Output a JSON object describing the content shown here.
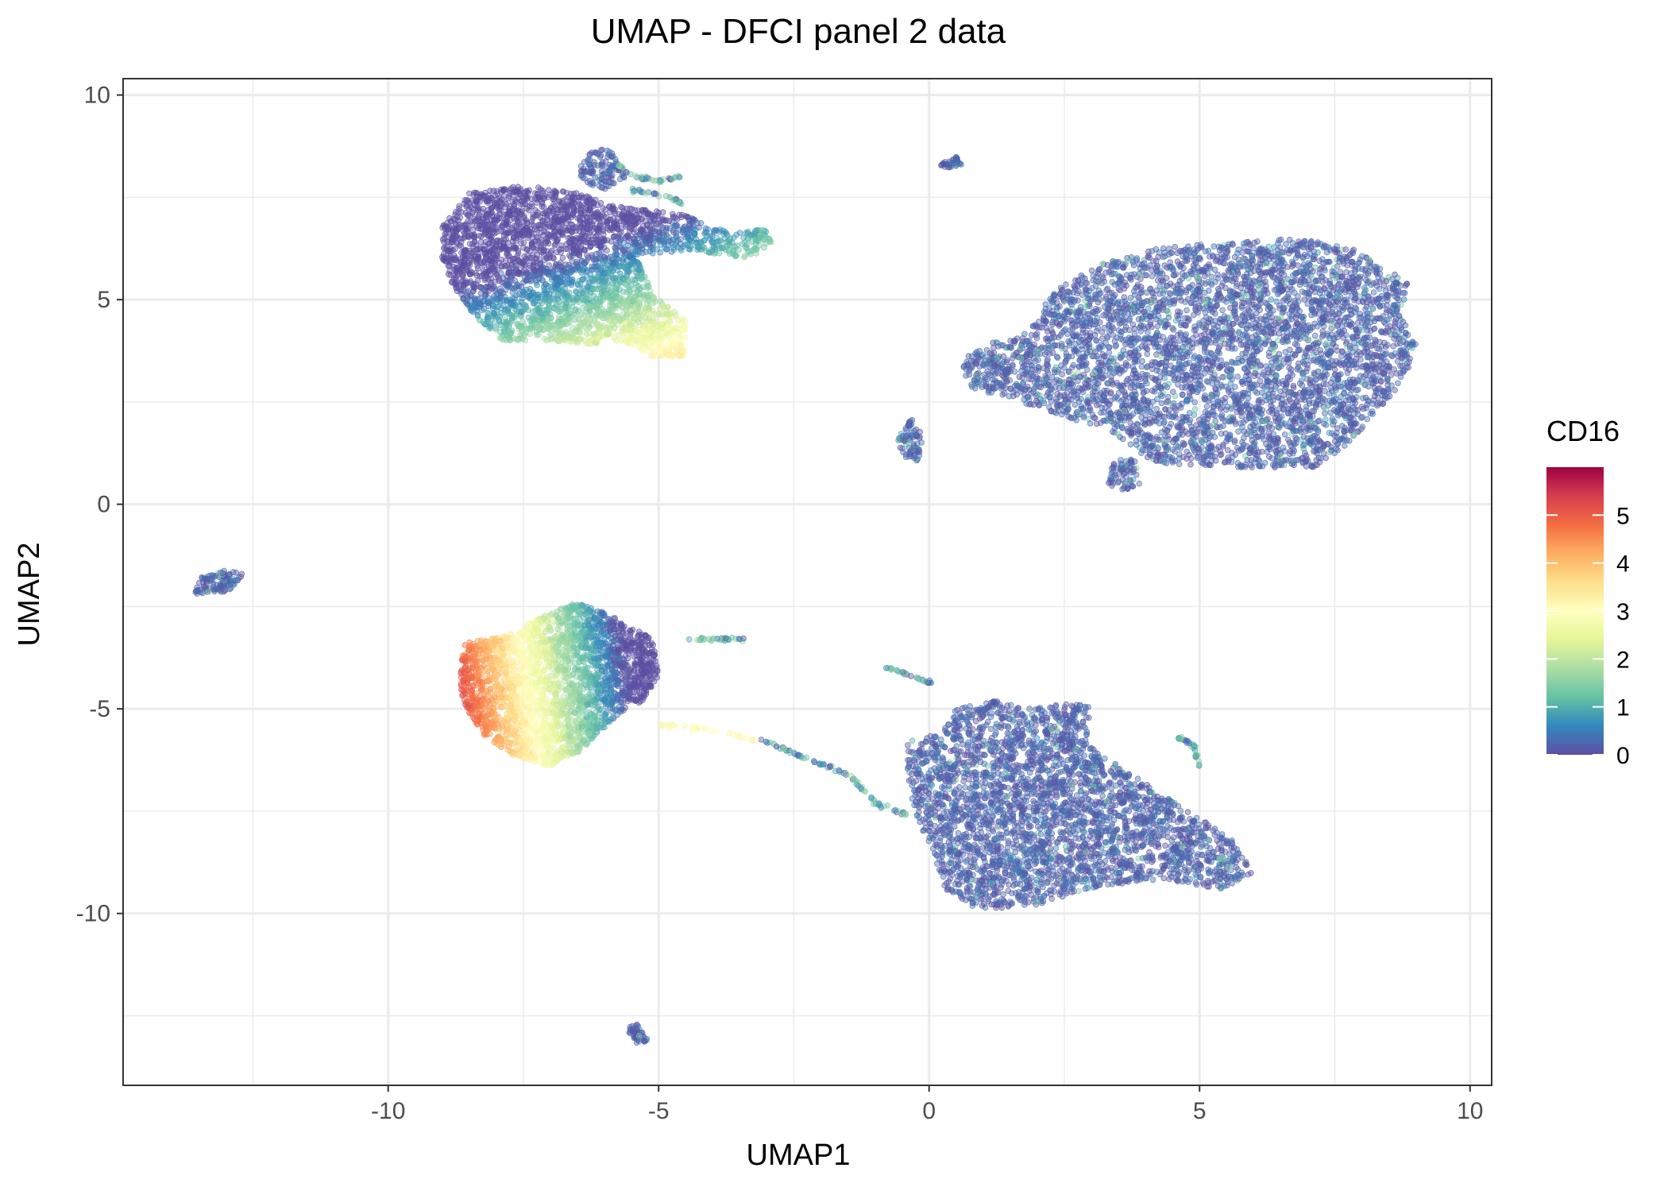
{
  "chart_data": {
    "type": "scatter",
    "title": "UMAP - DFCI panel 2 data",
    "xlabel": "UMAP1",
    "ylabel": "UMAP2",
    "xlim": [
      -14.9,
      10.4
    ],
    "ylim": [
      -14.2,
      10.4
    ],
    "x_ticks": [
      -10,
      -5,
      0,
      5,
      10
    ],
    "x_tick_labels": [
      "-10",
      "-5",
      "0",
      "5",
      "10"
    ],
    "y_ticks": [
      10,
      5,
      0,
      -5,
      -10
    ],
    "y_tick_labels": [
      "10",
      "5",
      "0",
      "-5",
      "-10"
    ],
    "grid": true,
    "legend": {
      "title": "CD16",
      "placement": "right",
      "range": [
        0,
        6
      ],
      "ticks": [
        0,
        1,
        2,
        3,
        4,
        5
      ],
      "tick_labels": [
        "0",
        "1",
        "2",
        "3",
        "4",
        "5"
      ],
      "palette": [
        "#5e4fa2",
        "#3288bd",
        "#66c2a5",
        "#abdda4",
        "#e6f598",
        "#ffffbf",
        "#fee08b",
        "#fdae61",
        "#f46d43",
        "#d53e4f",
        "#9e0142"
      ]
    },
    "clusters": [
      {
        "name": "top-left",
        "polygon": [
          [
            -9.0,
            6.8
          ],
          [
            -8.5,
            7.6
          ],
          [
            -7.5,
            7.8
          ],
          [
            -6.5,
            7.6
          ],
          [
            -5.8,
            7.3
          ],
          [
            -4.6,
            7.1
          ],
          [
            -3.6,
            6.6
          ],
          [
            -3.0,
            6.8
          ],
          [
            -2.9,
            6.4
          ],
          [
            -3.3,
            6.0
          ],
          [
            -4.4,
            6.2
          ],
          [
            -5.4,
            6.1
          ],
          [
            -5.1,
            5.1
          ],
          [
            -4.5,
            4.5
          ],
          [
            -4.5,
            3.6
          ],
          [
            -5.1,
            3.6
          ],
          [
            -5.7,
            4.0
          ],
          [
            -6.2,
            3.9
          ],
          [
            -7.0,
            4.0
          ],
          [
            -7.9,
            4.0
          ],
          [
            -8.4,
            4.6
          ],
          [
            -8.8,
            5.3
          ],
          [
            -9.0,
            6.0
          ]
        ],
        "n": 3200,
        "value_model": "gradient",
        "value_dir": [
          0.45,
          -1.0
        ],
        "value_range": [
          -0.7,
          5.0
        ],
        "value_shift": -0.25
      },
      {
        "name": "top-right",
        "polygon": [
          [
            -3.2,
            3.3
          ],
          [
            -3.0,
            3.8
          ],
          [
            -2.0,
            4.2
          ],
          [
            -1.5,
            5.2
          ],
          [
            -0.6,
            5.9
          ],
          [
            0.6,
            6.3
          ],
          [
            1.8,
            6.4
          ],
          [
            3.0,
            6.5
          ],
          [
            4.2,
            6.2
          ],
          [
            4.7,
            5.7
          ],
          [
            5.1,
            5.4
          ],
          [
            4.9,
            4.7
          ],
          [
            5.2,
            3.9
          ],
          [
            5.0,
            3.1
          ],
          [
            4.4,
            2.1
          ],
          [
            3.8,
            1.3
          ],
          [
            3.3,
            0.9
          ],
          [
            2.0,
            0.9
          ],
          [
            0.4,
            1.0
          ],
          [
            -0.5,
            1.8
          ],
          [
            -2.1,
            2.5
          ],
          [
            -3.0,
            2.8
          ]
        ],
        "offset": [
          3.8,
          0.0
        ],
        "n": 4500,
        "value_model": "low"
      },
      {
        "name": "bottom-left",
        "polygon": [
          [
            -8.6,
            -3.4
          ],
          [
            -7.8,
            -3.2
          ],
          [
            -7.1,
            -2.7
          ],
          [
            -6.5,
            -2.4
          ],
          [
            -5.9,
            -2.7
          ],
          [
            -5.1,
            -3.3
          ],
          [
            -5.0,
            -4.2
          ],
          [
            -5.3,
            -4.8
          ],
          [
            -5.8,
            -5.2
          ],
          [
            -6.4,
            -6.0
          ],
          [
            -7.0,
            -6.4
          ],
          [
            -7.6,
            -6.2
          ],
          [
            -8.2,
            -5.7
          ],
          [
            -8.6,
            -4.9
          ],
          [
            -8.7,
            -4.2
          ]
        ],
        "n": 2600,
        "value_model": "gradient",
        "value_dir": [
          -1.0,
          -0.12
        ],
        "value_range": [
          -0.8,
          5.2
        ],
        "value_shift": 0.0
      },
      {
        "name": "bottom-right",
        "polygon": [
          [
            -0.4,
            -5.8
          ],
          [
            0.2,
            -5.6
          ],
          [
            0.5,
            -5.0
          ],
          [
            1.2,
            -4.8
          ],
          [
            1.8,
            -5.0
          ],
          [
            2.4,
            -4.8
          ],
          [
            3.0,
            -4.9
          ],
          [
            2.9,
            -5.8
          ],
          [
            3.5,
            -6.4
          ],
          [
            4.2,
            -7.0
          ],
          [
            4.8,
            -7.5
          ],
          [
            5.6,
            -8.2
          ],
          [
            6.0,
            -9.0
          ],
          [
            5.4,
            -9.4
          ],
          [
            4.4,
            -9.2
          ],
          [
            3.2,
            -9.3
          ],
          [
            2.0,
            -9.8
          ],
          [
            0.9,
            -9.9
          ],
          [
            0.3,
            -9.4
          ],
          [
            0.1,
            -8.6
          ],
          [
            -0.2,
            -7.8
          ],
          [
            -0.4,
            -6.8
          ]
        ],
        "n": 3200,
        "value_model": "low"
      },
      {
        "name": "top-left-extension",
        "polygon": [
          [
            -6.4,
            8.6
          ],
          [
            -5.9,
            8.7
          ],
          [
            -5.6,
            8.0
          ],
          [
            -6.0,
            7.7
          ],
          [
            -6.5,
            7.9
          ]
        ],
        "n": 120,
        "value_model": "low"
      },
      {
        "name": "top-center-blob",
        "polygon": [
          [
            0.2,
            8.3
          ],
          [
            0.5,
            8.5
          ],
          [
            0.6,
            8.3
          ],
          [
            0.3,
            8.2
          ]
        ],
        "n": 40,
        "value_model": "low"
      },
      {
        "name": "small-near-top-right-1",
        "polygon": [
          [
            -0.5,
            1.2
          ],
          [
            -0.6,
            1.7
          ],
          [
            -0.3,
            2.1
          ],
          [
            -0.1,
            1.6
          ],
          [
            -0.2,
            1.0
          ]
        ],
        "n": 80,
        "value_model": "low"
      },
      {
        "name": "small-near-top-right-2",
        "polygon": [
          [
            3.3,
            0.5
          ],
          [
            3.4,
            1.1
          ],
          [
            3.8,
            1.1
          ],
          [
            3.9,
            0.5
          ],
          [
            3.6,
            0.3
          ]
        ],
        "n": 70,
        "value_model": "low"
      },
      {
        "name": "far-left-blob",
        "polygon": [
          [
            -13.6,
            -2.2
          ],
          [
            -13.5,
            -1.8
          ],
          [
            -13.0,
            -1.6
          ],
          [
            -12.7,
            -1.7
          ],
          [
            -12.8,
            -2.1
          ],
          [
            -13.2,
            -2.2
          ]
        ],
        "n": 110,
        "value_model": "low"
      },
      {
        "name": "bottom-blob",
        "polygon": [
          [
            -5.6,
            -12.8
          ],
          [
            -5.4,
            -12.7
          ],
          [
            -5.2,
            -13.1
          ],
          [
            -5.4,
            -13.2
          ]
        ],
        "n": 45,
        "value_model": "low"
      }
    ],
    "trails": [
      {
        "name": "trail-top-1",
        "points": [
          [
            -5.8,
            8.3
          ],
          [
            -5.4,
            8.0
          ],
          [
            -5.0,
            7.9
          ],
          [
            -4.6,
            8.0
          ]
        ],
        "n": 40
      },
      {
        "name": "trail-top-2",
        "points": [
          [
            -5.5,
            7.7
          ],
          [
            -5.2,
            7.6
          ],
          [
            -4.8,
            7.5
          ],
          [
            -4.5,
            7.3
          ]
        ],
        "n": 30
      },
      {
        "name": "trail-mid-1",
        "points": [
          [
            -5.0,
            -5.4
          ],
          [
            -4.1,
            -5.5
          ],
          [
            -3.0,
            -5.8
          ],
          [
            -2.3,
            -6.2
          ],
          [
            -1.5,
            -6.6
          ],
          [
            -1.0,
            -7.3
          ],
          [
            -0.4,
            -7.6
          ]
        ],
        "n": 110
      },
      {
        "name": "trail-mid-2",
        "points": [
          [
            -4.4,
            -3.3
          ],
          [
            -3.8,
            -3.3
          ],
          [
            -3.4,
            -3.3
          ]
        ],
        "n": 30
      },
      {
        "name": "trail-right-1",
        "points": [
          [
            4.6,
            -5.7
          ],
          [
            4.9,
            -5.9
          ],
          [
            5.0,
            -6.4
          ]
        ],
        "n": 30
      },
      {
        "name": "trail-right-2",
        "points": [
          [
            -0.8,
            -4.0
          ],
          [
            -0.3,
            -4.2
          ],
          [
            0.1,
            -4.4
          ]
        ],
        "n": 30
      }
    ]
  }
}
